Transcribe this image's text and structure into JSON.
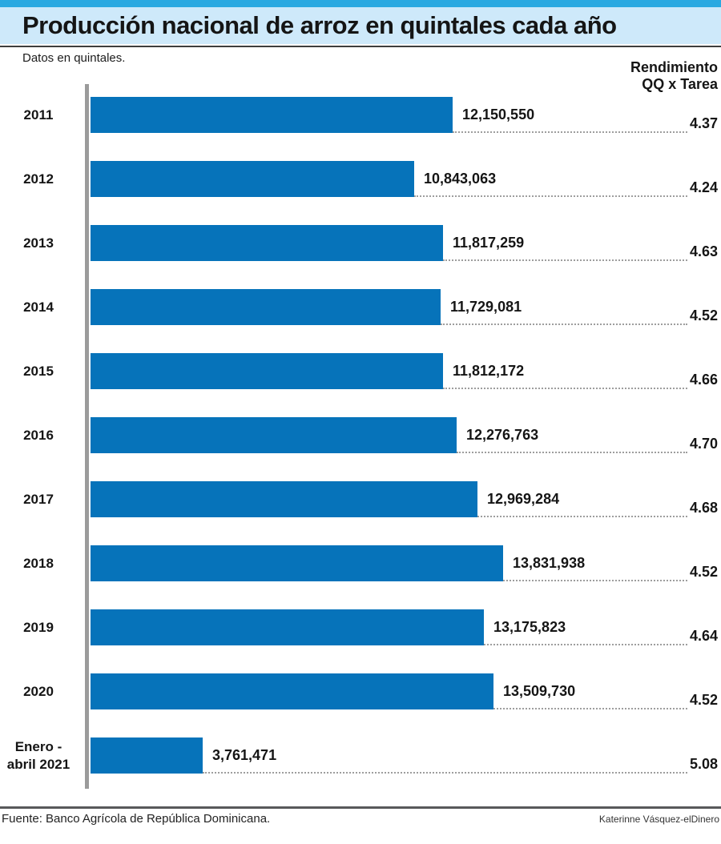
{
  "header": {
    "title": "Producción nacional de arroz en quintales cada año",
    "subtitle": "Datos en quintales.",
    "yield_header_line1": "Rendimiento",
    "yield_header_line2": "QQ x Tarea"
  },
  "footer": {
    "source": "Fuente: Banco Agrícola de República Dominicana.",
    "credit": "Katerinne Vásquez-elDinero"
  },
  "colors": {
    "bar": "#0673BA",
    "header_stripe": "#2AA9E1",
    "header_band": "#CEE9FA",
    "axis": "#9B9B9B"
  },
  "chart_data": {
    "type": "bar",
    "orientation": "horizontal",
    "title": "Producción nacional de arroz en quintales cada año",
    "unit": "quintales",
    "categories": [
      "2011",
      "2012",
      "2013",
      "2014",
      "2015",
      "2016",
      "2017",
      "2018",
      "2019",
      "2020",
      "Enero - abril 2021"
    ],
    "categories_display": [
      "2011",
      "2012",
      "2013",
      "2014",
      "2015",
      "2016",
      "2017",
      "2018",
      "2019",
      "2020",
      "Enero -\nabril 2021"
    ],
    "values": [
      12150550,
      10843063,
      11817259,
      11729081,
      11812172,
      12276763,
      12969284,
      13831938,
      13175823,
      13509730,
      3761471
    ],
    "value_labels": [
      "12,150,550",
      "10,843,063",
      "11,817,259",
      "11,729,081",
      "11,812,172",
      "12,276,763",
      "12,969,284",
      "13,831,938",
      "13,175,823",
      "13,509,730",
      "3,761,471"
    ],
    "yield_values": [
      4.37,
      4.24,
      4.63,
      4.52,
      4.66,
      4.7,
      4.68,
      4.52,
      4.64,
      4.52,
      5.08
    ],
    "yield_labels": [
      "4.37",
      "4.24",
      "4.63",
      "4.52",
      "4.66",
      "4.70",
      "4.68",
      "4.52",
      "4.64",
      "4.52",
      "5.08"
    ],
    "xlim": [
      0,
      13831938
    ],
    "grid": false,
    "legend": false
  }
}
